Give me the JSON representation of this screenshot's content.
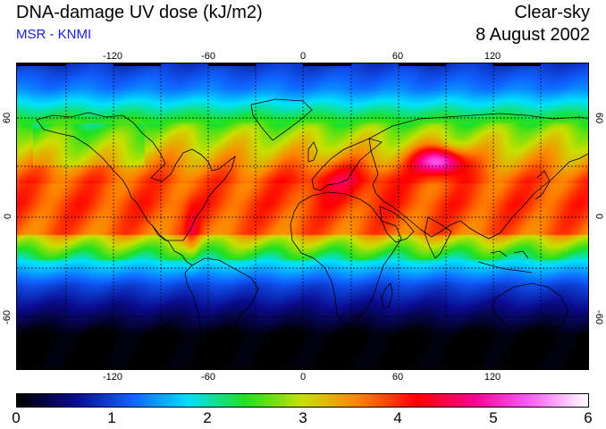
{
  "header": {
    "title": "DNA-damage UV dose (kJ/m2)",
    "subtitle": "MSR - KNMI",
    "mode": "Clear-sky",
    "date": "8 August 2002"
  },
  "map": {
    "projection": "equirectangular",
    "lon_ticks": [
      "-120",
      "-60",
      "0",
      "60",
      "120"
    ],
    "lat_ticks": [
      "60",
      "0",
      "-60"
    ],
    "grid": "dashed, 30 degree spacing",
    "colorbar": {
      "labels": [
        "0",
        "1",
        "2",
        "3",
        "4",
        "5",
        "6"
      ],
      "min": 0,
      "max": 6,
      "colors": [
        "#000000",
        "#0a0a8c",
        "#1060ff",
        "#00e0ff",
        "#20e020",
        "#c8e000",
        "#ff8000",
        "#ff0000",
        "#ff0090",
        "#ff60ff",
        "#ffffff"
      ]
    }
  }
}
